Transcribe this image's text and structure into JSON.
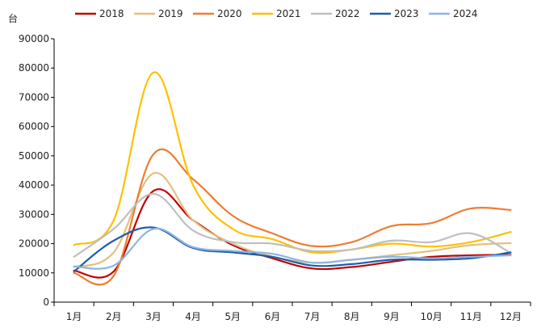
{
  "chart_data": {
    "type": "line",
    "title": "",
    "xlabel": "",
    "ylabel": "",
    "unit": "台",
    "categories": [
      "1月",
      "2月",
      "3月",
      "4月",
      "5月",
      "6月",
      "7月",
      "8月",
      "9月",
      "10月",
      "11月",
      "12月"
    ],
    "yticks": [
      "0",
      "10000",
      "20000",
      "30000",
      "40000",
      "50000",
      "60000",
      "70000",
      "80000",
      "90000"
    ],
    "ylim": [
      0,
      90000
    ],
    "legend_position": "top",
    "grid": false,
    "series": [
      {
        "name": "2018",
        "color": "#c00000",
        "values": [
          10800,
          10500,
          38000,
          28000,
          19500,
          15000,
          11500,
          12000,
          13800,
          15500,
          16000,
          16200
        ]
      },
      {
        "name": "2019",
        "color": "#e3c07e",
        "values": [
          12000,
          17000,
          44000,
          28000,
          20000,
          15500,
          13500,
          14500,
          16000,
          17500,
          19500,
          20200
        ]
      },
      {
        "name": "2020",
        "color": "#ed7d31",
        "values": [
          10000,
          9000,
          50500,
          42000,
          29500,
          23500,
          19200,
          20500,
          26000,
          27000,
          32000,
          31500
        ]
      },
      {
        "name": "2021",
        "color": "#ffc000",
        "values": [
          19500,
          28000,
          78500,
          40000,
          25000,
          21500,
          17000,
          18000,
          20000,
          19000,
          20500,
          24000
        ]
      },
      {
        "name": "2022",
        "color": "#bfbfbf",
        "values": [
          15500,
          25000,
          37000,
          24500,
          20500,
          20000,
          17500,
          18000,
          21000,
          20500,
          23500,
          16800
        ]
      },
      {
        "name": "2023",
        "color": "#1f5ea8",
        "values": [
          10500,
          21000,
          25500,
          18500,
          17000,
          15500,
          12500,
          13000,
          14500,
          14500,
          15000,
          17000
        ]
      },
      {
        "name": "2024",
        "color": "#8eb4e3",
        "values": [
          12200,
          12500,
          25000,
          18800,
          17500,
          16500,
          13500,
          14500,
          15500,
          15000,
          15500,
          16000
        ]
      }
    ]
  }
}
